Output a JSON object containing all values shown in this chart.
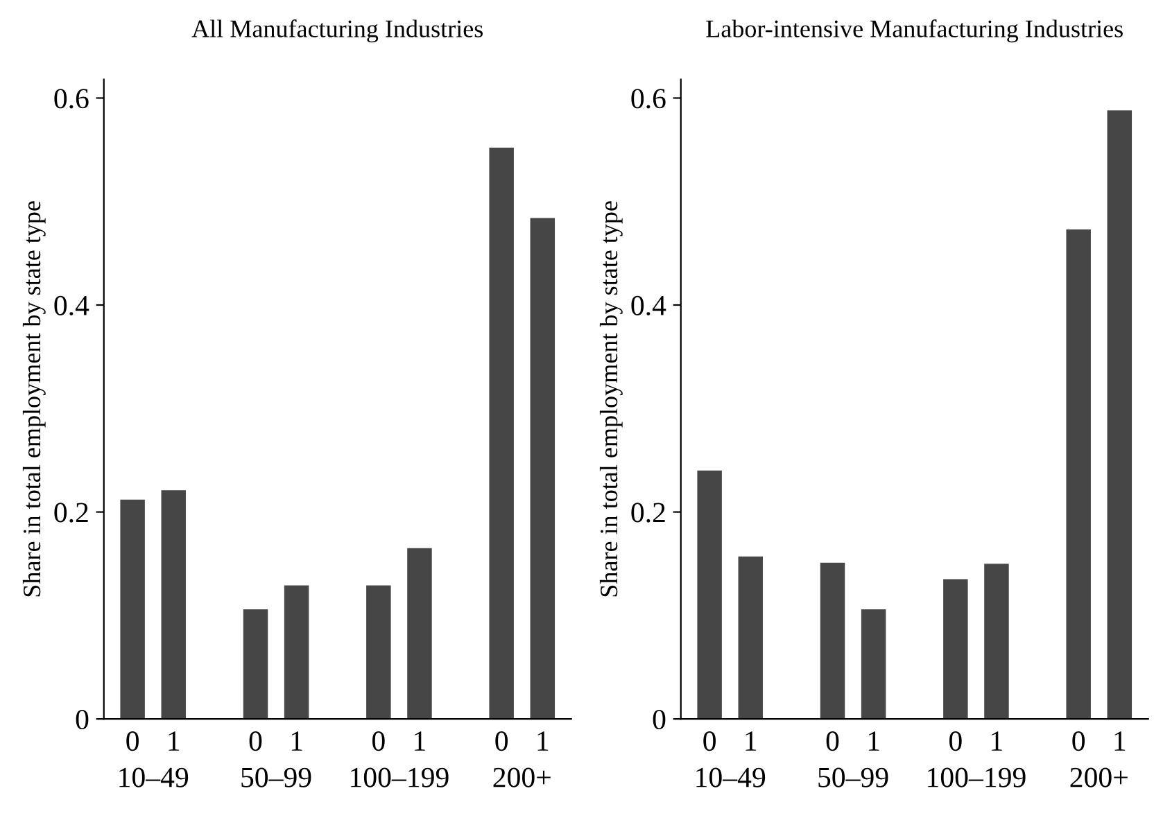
{
  "chart_data": [
    {
      "type": "bar",
      "title": "All Manufacturing Industries",
      "ylabel": "Share in total employment by state type",
      "categories": [
        "0",
        "1",
        null,
        "0",
        "1",
        null,
        "0",
        "1",
        null,
        "0",
        "1"
      ],
      "values": [
        0.212,
        0.221,
        null,
        0.106,
        0.129,
        null,
        0.129,
        0.165,
        null,
        0.552,
        0.484
      ],
      "color": "#464646",
      "ylim": [
        0,
        0.618
      ],
      "yticks": [
        0,
        0.2,
        0.4,
        0.6
      ],
      "annotations": [
        "10–49",
        "50–99",
        "100–199",
        "200+"
      ],
      "grid": false,
      "legend": false
    },
    {
      "type": "bar",
      "title": "Labor-intensive Manufacturing Industries",
      "ylabel": "Share in total employment by state type",
      "categories": [
        "0",
        "1",
        null,
        "0",
        "1",
        null,
        "0",
        "1",
        null,
        "0",
        "1"
      ],
      "values": [
        0.24,
        0.157,
        null,
        0.151,
        0.106,
        null,
        0.135,
        0.15,
        null,
        0.473,
        0.588
      ],
      "color": "#464646",
      "ylim": [
        0,
        0.618
      ],
      "yticks": [
        0,
        0.2,
        0.4,
        0.6
      ],
      "annotations": [
        "10–49",
        "50–99",
        "100–199",
        "200+"
      ],
      "grid": false,
      "legend": false
    }
  ]
}
